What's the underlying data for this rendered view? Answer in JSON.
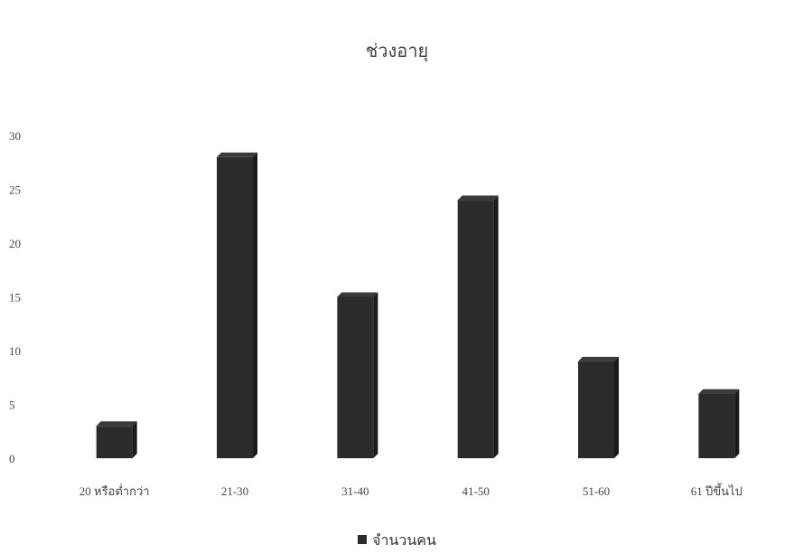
{
  "chart_data": {
    "type": "bar",
    "title": "ช่วงอายุ",
    "categories": [
      "20 หรือต่ำกว่า",
      "21-30",
      "31-40",
      "41-50",
      "51-60",
      "61 ปีขึ้นไป"
    ],
    "series": [
      {
        "name": "จำนวนคน",
        "values": [
          3,
          28,
          15,
          24,
          9,
          6
        ]
      }
    ],
    "xlabel": "",
    "ylabel": "",
    "ylim": [
      0,
      30
    ],
    "yticks": [
      0,
      5,
      10,
      15,
      20,
      25,
      30
    ],
    "grid": false,
    "legend": "bottom",
    "colors": {
      "bar": "#2b2b2b",
      "bar_side": "#1a1a1a",
      "bar_top": "#3a3a3a"
    }
  }
}
